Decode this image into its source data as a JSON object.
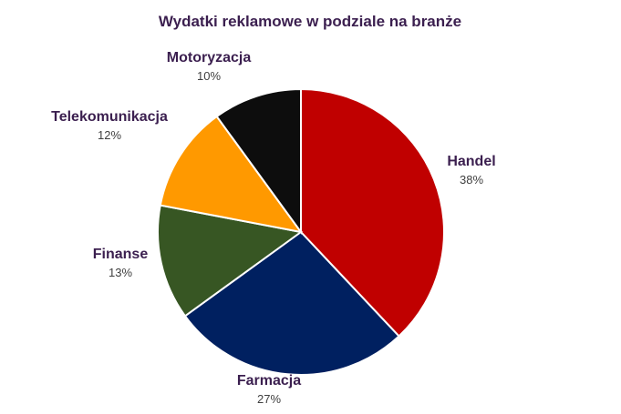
{
  "chart_data": {
    "type": "pie",
    "title": "Wydatki reklamowe w podziale na branże",
    "slices": [
      {
        "label": "Handel",
        "value": 38,
        "value_label": "38%",
        "color": "#c00000"
      },
      {
        "label": "Farmacja",
        "value": 27,
        "value_label": "27%",
        "color": "#002060"
      },
      {
        "label": "Finanse",
        "value": 13,
        "value_label": "13%",
        "color": "#375623"
      },
      {
        "label": "Telekomunikacja",
        "value": 12,
        "value_label": "12%",
        "color": "#ff9900"
      },
      {
        "label": "Motoryzacja",
        "value": 10,
        "value_label": "10%",
        "color": "#0d0d0d"
      }
    ],
    "legend": "none"
  }
}
